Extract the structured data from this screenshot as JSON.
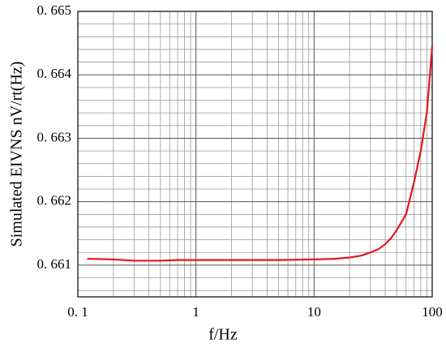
{
  "chart_data": {
    "type": "line",
    "xlabel": "f/Hz",
    "ylabel": "Simulated EIVNS nV/rt(Hz)",
    "x": [
      0.12,
      0.2,
      0.3,
      0.5,
      0.7,
      1,
      2,
      5,
      10,
      15,
      20,
      25,
      30,
      35,
      40,
      45,
      50,
      55,
      60,
      70,
      80,
      90,
      100
    ],
    "series": [
      {
        "color": "#e8141e",
        "values": [
          0.6611,
          0.66109,
          0.66107,
          0.66107,
          0.66108,
          0.66108,
          0.66108,
          0.66108,
          0.66109,
          0.6611,
          0.66112,
          0.66115,
          0.6612,
          0.66125,
          0.66133,
          0.66143,
          0.66155,
          0.66168,
          0.6618,
          0.6623,
          0.6628,
          0.6634,
          0.66445
        ]
      }
    ],
    "xlim": [
      0.1,
      100
    ],
    "xscale": "log",
    "xticks": [
      {
        "value": 0.1,
        "label": "0. 1"
      },
      1,
      10,
      100
    ],
    "xminorticks": [
      0.2,
      0.3,
      0.4,
      0.5,
      0.6,
      0.7,
      0.8,
      0.9,
      2,
      3,
      4,
      5,
      6,
      7,
      8,
      9,
      20,
      30,
      40,
      50,
      60,
      70,
      80,
      90
    ],
    "ylim": [
      0.6605,
      0.665
    ],
    "yticks": [
      {
        "value": 0.661,
        "label": "0. 661"
      },
      {
        "value": 0.662,
        "label": "0. 662"
      },
      {
        "value": 0.663,
        "label": "0. 663"
      },
      {
        "value": 0.664,
        "label": "0. 664"
      },
      {
        "value": 0.665,
        "label": "0. 665"
      }
    ],
    "yminorticks": [
      0.6606,
      0.6608,
      0.6612,
      0.6614,
      0.6616,
      0.6618,
      0.6622,
      0.6624,
      0.6626,
      0.6628,
      0.6632,
      0.6634,
      0.6636,
      0.6638,
      0.6642,
      0.6644,
      0.6646,
      0.6648
    ],
    "grid": true
  }
}
